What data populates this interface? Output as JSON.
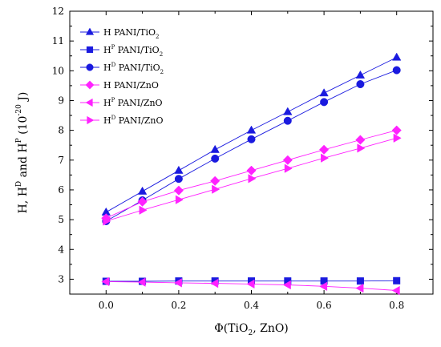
{
  "chart_data": {
    "type": "line",
    "xlabel": {
      "base": "Φ(TiO",
      "sub": "2",
      "rest": ", ZnO)"
    },
    "ylabel": {
      "parts": [
        "H, H",
        "D",
        " and H",
        "P",
        " (10",
        "-20",
        " J)"
      ]
    },
    "xlim": [
      -0.1,
      0.9
    ],
    "ylim": [
      2.5,
      12
    ],
    "x_ticks": [
      0.0,
      0.2,
      0.4,
      0.6,
      0.8
    ],
    "x_tick_labels": [
      "0.0",
      "0.2",
      "0.4",
      "0.6",
      "0.8"
    ],
    "y_ticks": [
      3,
      4,
      5,
      6,
      7,
      8,
      9,
      10,
      11,
      12
    ],
    "y_tick_labels": [
      "3",
      "4",
      "5",
      "6",
      "7",
      "8",
      "9",
      "10",
      "11",
      "12"
    ],
    "grid": false,
    "legend_position": "top-left",
    "x": [
      0.0,
      0.1,
      0.2,
      0.3,
      0.4,
      0.5,
      0.6,
      0.7,
      0.8
    ],
    "series": [
      {
        "name": "H PANI/TiO2",
        "label": {
          "main": "H PANI/TiO",
          "sup": "",
          "sub": "2",
          "after": ""
        },
        "marker": "triangle-up",
        "color": "#1a1adf",
        "values": [
          5.25,
          5.95,
          6.65,
          7.35,
          8.0,
          8.62,
          9.25,
          9.85,
          10.45
        ]
      },
      {
        "name": "HP PANI/TiO2",
        "label": {
          "main": "H",
          "sup": "P",
          "sub": "2",
          "after": " PANI/TiO"
        },
        "marker": "square",
        "color": "#1a1adf",
        "values": [
          2.93,
          2.93,
          2.94,
          2.94,
          2.94,
          2.94,
          2.94,
          2.94,
          2.95
        ]
      },
      {
        "name": "HD PANI/TiO2",
        "label": {
          "main": "H",
          "sup": "D",
          "sub": "2",
          "after": " PANI/TiO"
        },
        "marker": "circle",
        "color": "#1a1adf",
        "values": [
          4.95,
          5.65,
          6.37,
          7.05,
          7.7,
          8.32,
          8.95,
          9.55,
          10.02
        ]
      },
      {
        "name": "H PANI/ZnO",
        "label": {
          "main": "H PANI/ZnO",
          "sup": "",
          "sub": "",
          "after": ""
        },
        "marker": "diamond",
        "color": "#ff22ff",
        "values": [
          5.05,
          5.6,
          5.98,
          6.3,
          6.65,
          7.0,
          7.35,
          7.68,
          8.0
        ]
      },
      {
        "name": "HP PANI/ZnO",
        "label": {
          "main": "H",
          "sup": "P",
          "sub": "",
          "after": " PANI/ZnO"
        },
        "marker": "triangle-left",
        "color": "#ff22ff",
        "values": [
          2.92,
          2.9,
          2.88,
          2.86,
          2.84,
          2.81,
          2.76,
          2.7,
          2.62
        ]
      },
      {
        "name": "HD PANI/ZnO",
        "label": {
          "main": "H",
          "sup": "D",
          "sub": "",
          "after": " PANI/ZnO"
        },
        "marker": "triangle-right",
        "color": "#ff22ff",
        "values": [
          4.95,
          5.32,
          5.67,
          6.02,
          6.38,
          6.72,
          7.07,
          7.4,
          7.74
        ]
      }
    ]
  }
}
